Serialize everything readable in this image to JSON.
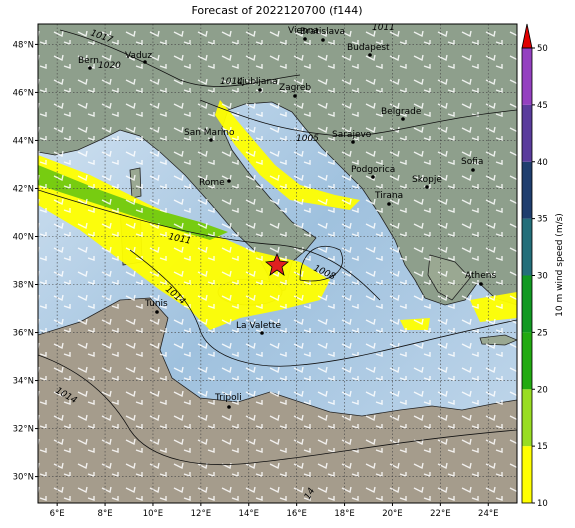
{
  "title": "Forecast of 2022120700 (f144)",
  "map": {
    "xlim": [
      5.2,
      25.2
    ],
    "ylim": [
      28.9,
      48.85
    ],
    "grid": true,
    "xticks": [
      {
        "value": 6,
        "label": "6°E"
      },
      {
        "value": 8,
        "label": "8°E"
      },
      {
        "value": 10,
        "label": "10°E"
      },
      {
        "value": 12,
        "label": "12°E"
      },
      {
        "value": 14,
        "label": "14°E"
      },
      {
        "value": 16,
        "label": "16°E"
      },
      {
        "value": 18,
        "label": "18°E"
      },
      {
        "value": 20,
        "label": "20°E"
      },
      {
        "value": 22,
        "label": "22°E"
      },
      {
        "value": 24,
        "label": "24°E"
      }
    ],
    "yticks": [
      {
        "value": 30,
        "label": "30°N"
      },
      {
        "value": 32,
        "label": "32°N"
      },
      {
        "value": 34,
        "label": "34°N"
      },
      {
        "value": 36,
        "label": "36°N"
      },
      {
        "value": 38,
        "label": "38°N"
      },
      {
        "value": 40,
        "label": "40°N"
      },
      {
        "value": 42,
        "label": "42°N"
      },
      {
        "value": 44,
        "label": "44°N"
      },
      {
        "value": 46,
        "label": "46°N"
      },
      {
        "value": 48,
        "label": "48°N"
      }
    ],
    "cities": [
      "Vienna",
      "Bratislava",
      "Budapest",
      "Bern",
      "Vaduz",
      "Ljubljana",
      "Zagreb",
      "Belgrade",
      "San Marino",
      "Sarajevo",
      "Rome",
      "Podgorica",
      "Tirana",
      "Skopje",
      "Sofia",
      "Athens",
      "Tunis",
      "La Valette",
      "Tripoli"
    ],
    "isobar_labels": [
      "1017",
      "1020",
      "1011",
      "1014",
      "1005",
      "1011",
      "1008",
      "1014",
      "1014",
      "14"
    ]
  },
  "colorbar": {
    "label": "10 m wind speed (m/s)",
    "lim": [
      10,
      50
    ],
    "ticks": [
      10,
      15,
      20,
      25,
      30,
      35,
      40,
      45,
      50
    ],
    "colors": [
      "#ffff00",
      "#99dd22",
      "#22aa11",
      "#119922",
      "#236f7a",
      "#1f3e6e",
      "#5a3c9c",
      "#9440c0"
    ],
    "extend_color": "#e00000"
  }
}
